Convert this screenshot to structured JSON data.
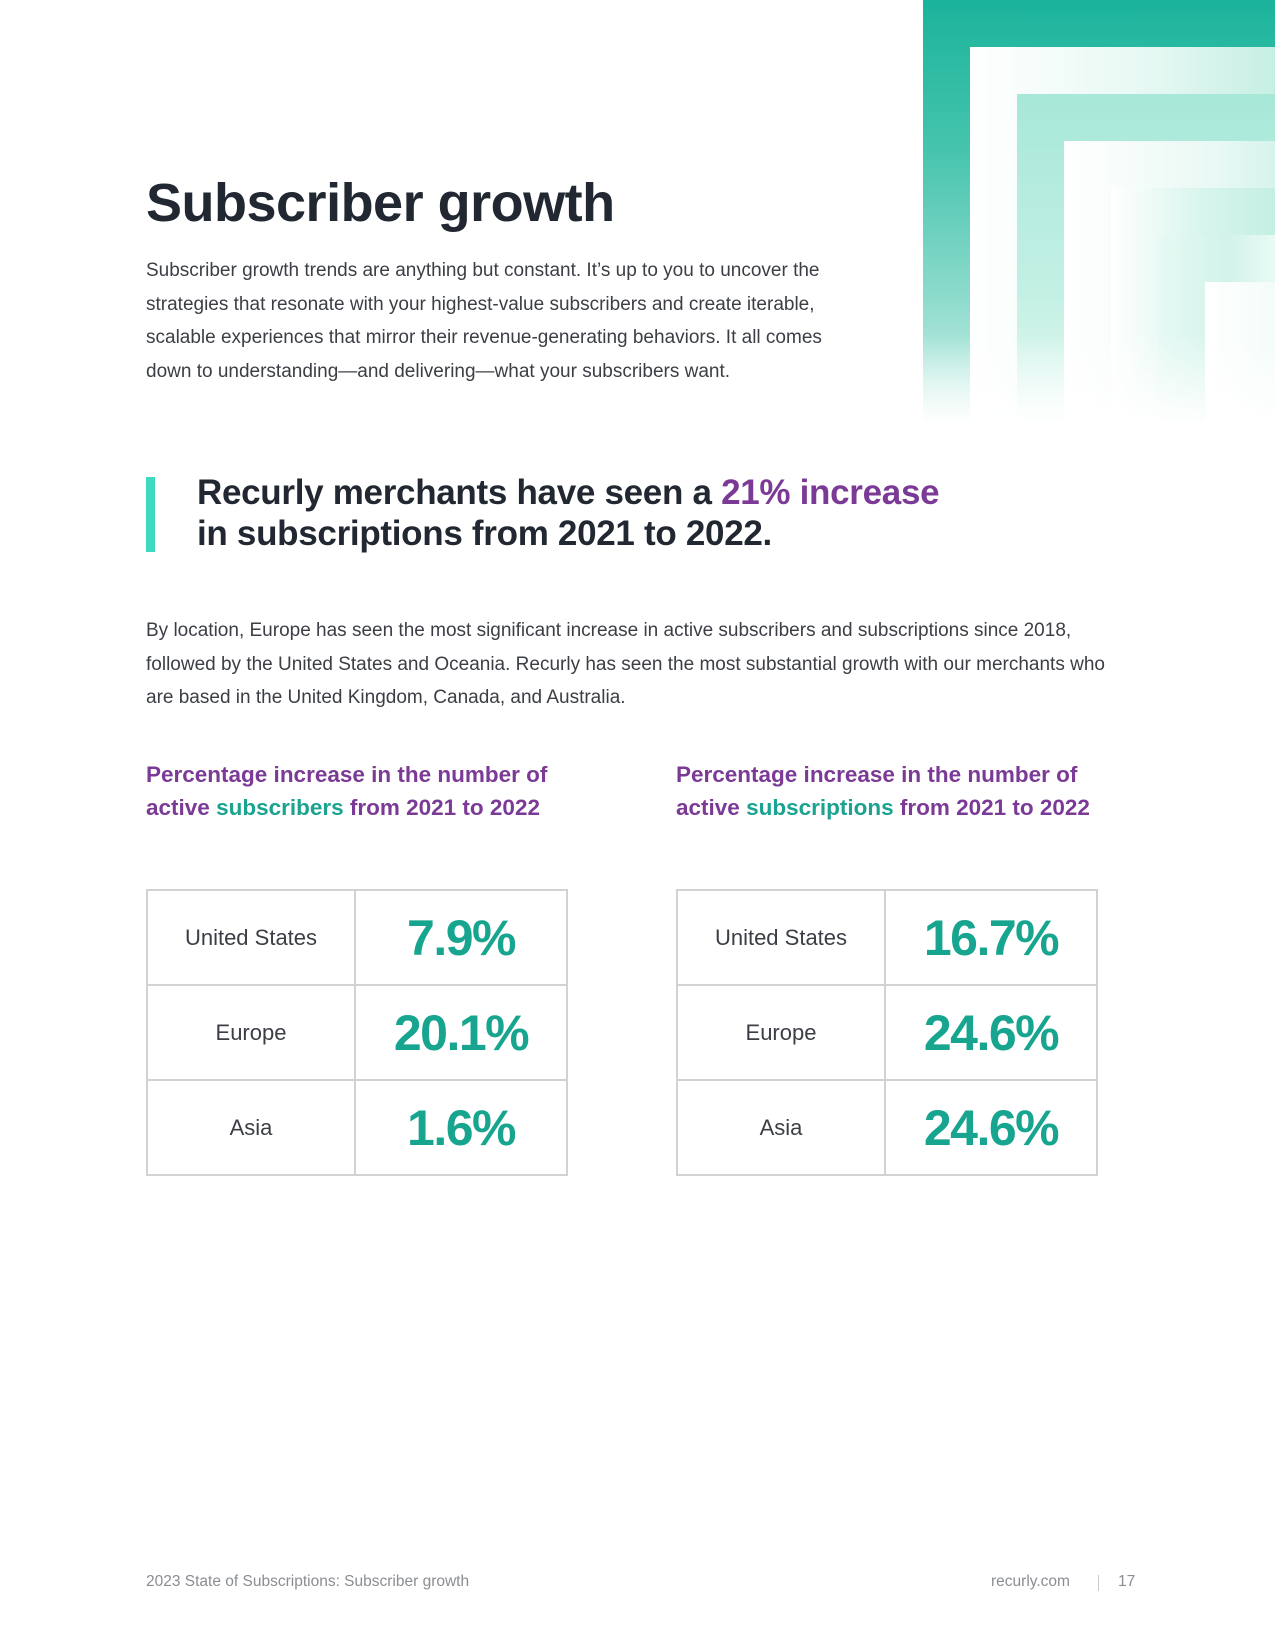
{
  "header": {
    "title": "Subscriber growth"
  },
  "intro": {
    "paragraph": "Subscriber growth trends are anything but constant. It’s up to you to uncover the strategies that resonate with your highest-value subscribers and create iterable, scalable experiences that mirror their revenue-generating behaviors. It all comes down to understanding—and delivering—what your subscribers want."
  },
  "callout": {
    "text_before": "Recurly merchants have seen a ",
    "highlight": "21% increase",
    "text_after": "in subscriptions from 2021 to 2022."
  },
  "location": {
    "paragraph": "By location, Europe has seen the most significant increase in active subscribers and subscriptions since 2018, followed by the United States and Oceania. Recurly has seen the most substantial growth with our merchants who are based in the United Kingdom, Canada, and Australia."
  },
  "tables": [
    {
      "heading_line1": "Percentage increase in the number of",
      "heading_active": "active ",
      "heading_metric": "subscribers",
      "heading_rest": " from 2021 to 2022",
      "rows": [
        {
          "region": "United States",
          "value": "7.9%"
        },
        {
          "region": "Europe",
          "value": "20.1%"
        },
        {
          "region": "Asia",
          "value": "1.6%"
        }
      ]
    },
    {
      "heading_line1": "Percentage increase in the number of",
      "heading_active": "active ",
      "heading_metric": "subscriptions",
      "heading_rest": " from 2021 to 2022",
      "rows": [
        {
          "region": "United States",
          "value": "16.7%"
        },
        {
          "region": "Europe",
          "value": "24.6%"
        },
        {
          "region": "Asia",
          "value": "24.6%"
        }
      ]
    }
  ],
  "footer": {
    "left": "2023 State of Subscriptions: Subscriber growth",
    "site": "recurly.com",
    "page": "17"
  },
  "colors": {
    "accent_purple": "#7b3a96",
    "accent_teal": "#17a58f",
    "callout_bar": "#3fd9bf"
  }
}
